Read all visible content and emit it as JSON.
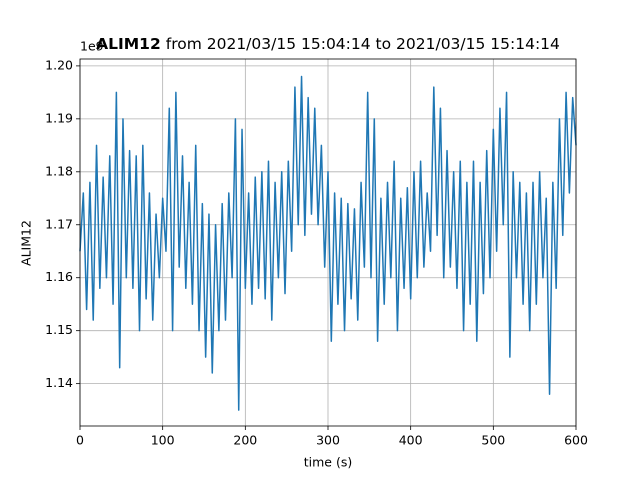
{
  "chart_data": {
    "type": "line",
    "title_bold": "ALIM12",
    "title": "from 2021/03/15 15:04:14 to 2021/03/15 15:14:14",
    "xlabel": "time (s)",
    "ylabel": "ALIM12",
    "y_offset": "1e9",
    "xlim": [
      0,
      600
    ],
    "ylim": [
      1.132,
      1.2013
    ],
    "xticks": [
      0,
      100,
      200,
      300,
      400,
      500,
      600
    ],
    "yticks": [
      1.14,
      1.15,
      1.16,
      1.17,
      1.18,
      1.19,
      {
        "value": 1.2,
        "label": "1.20"
      }
    ],
    "grid": true,
    "x": [
      0,
      4,
      8,
      12,
      16,
      20,
      24,
      28,
      32,
      36,
      40,
      44,
      48,
      52,
      56,
      60,
      64,
      68,
      72,
      76,
      80,
      84,
      88,
      92,
      96,
      100,
      104,
      108,
      112,
      116,
      120,
      124,
      128,
      132,
      136,
      140,
      144,
      148,
      152,
      156,
      160,
      164,
      168,
      172,
      176,
      180,
      184,
      188,
      192,
      196,
      200,
      204,
      208,
      212,
      216,
      220,
      224,
      228,
      232,
      236,
      240,
      244,
      248,
      252,
      256,
      260,
      264,
      268,
      272,
      276,
      280,
      284,
      288,
      292,
      296,
      300,
      304,
      308,
      312,
      316,
      320,
      324,
      328,
      332,
      336,
      340,
      344,
      348,
      352,
      356,
      360,
      364,
      368,
      372,
      376,
      380,
      384,
      388,
      392,
      396,
      400,
      404,
      408,
      412,
      416,
      420,
      424,
      428,
      432,
      436,
      440,
      444,
      448,
      452,
      456,
      460,
      464,
      468,
      472,
      476,
      480,
      484,
      488,
      492,
      496,
      500,
      504,
      508,
      512,
      516,
      520,
      524,
      528,
      532,
      536,
      540,
      544,
      548,
      552,
      556,
      560,
      564,
      568,
      572,
      576,
      580,
      584,
      588,
      592,
      596,
      600
    ],
    "series": [
      {
        "name": "ALIM12",
        "color": "#1f77b4",
        "values": [
          1.165,
          1.176,
          1.154,
          1.178,
          1.152,
          1.185,
          1.158,
          1.179,
          1.16,
          1.183,
          1.155,
          1.195,
          1.143,
          1.19,
          1.16,
          1.184,
          1.158,
          1.183,
          1.15,
          1.185,
          1.156,
          1.176,
          1.152,
          1.172,
          1.16,
          1.175,
          1.165,
          1.192,
          1.15,
          1.195,
          1.162,
          1.183,
          1.158,
          1.178,
          1.155,
          1.185,
          1.15,
          1.174,
          1.145,
          1.172,
          1.142,
          1.17,
          1.15,
          1.174,
          1.152,
          1.176,
          1.16,
          1.19,
          1.135,
          1.188,
          1.158,
          1.176,
          1.155,
          1.179,
          1.158,
          1.18,
          1.156,
          1.182,
          1.152,
          1.178,
          1.16,
          1.18,
          1.157,
          1.182,
          1.165,
          1.196,
          1.17,
          1.198,
          1.168,
          1.194,
          1.172,
          1.192,
          1.17,
          1.185,
          1.162,
          1.18,
          1.148,
          1.176,
          1.155,
          1.175,
          1.15,
          1.174,
          1.156,
          1.173,
          1.152,
          1.178,
          1.162,
          1.195,
          1.16,
          1.19,
          1.148,
          1.175,
          1.155,
          1.178,
          1.16,
          1.182,
          1.15,
          1.175,
          1.158,
          1.177,
          1.156,
          1.18,
          1.16,
          1.182,
          1.162,
          1.176,
          1.165,
          1.196,
          1.168,
          1.192,
          1.16,
          1.184,
          1.162,
          1.18,
          1.158,
          1.182,
          1.15,
          1.178,
          1.155,
          1.182,
          1.148,
          1.178,
          1.157,
          1.184,
          1.16,
          1.188,
          1.165,
          1.192,
          1.17,
          1.195,
          1.145,
          1.18,
          1.16,
          1.178,
          1.155,
          1.176,
          1.15,
          1.178,
          1.155,
          1.18,
          1.16,
          1.175,
          1.138,
          1.178,
          1.158,
          1.19,
          1.168,
          1.195,
          1.176,
          1.194,
          1.185
        ]
      }
    ]
  }
}
